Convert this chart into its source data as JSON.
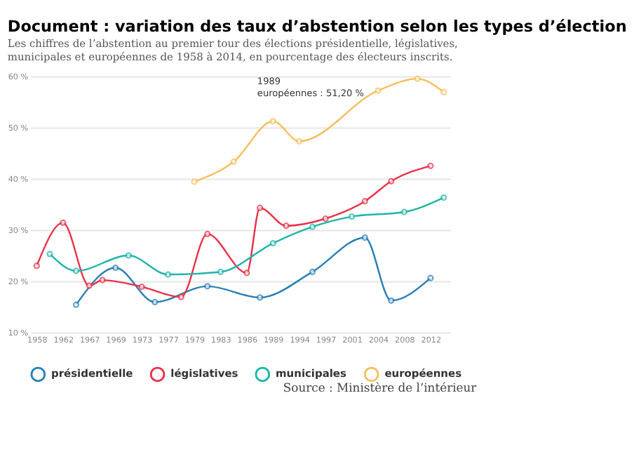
{
  "chart_data": {
    "type": "line",
    "title": "Document : variation des taux d’abstention selon les types d’élection",
    "subtitle": [
      "Les chiffres de l’abstention au premier tour des élections présidentielle, législatives,",
      "municipales et européennes de 1958 à 2014, en pourcentage des électeurs inscrits."
    ],
    "categories": [
      "1958",
      null,
      "1962",
      null,
      "1967",
      null,
      "1969",
      null,
      "1973",
      null,
      "1977",
      null,
      "1979",
      null,
      "1983",
      null,
      "1986",
      null,
      "1989",
      null,
      "1994",
      null,
      "1997",
      null,
      "2001",
      null,
      "2004",
      null,
      "2008",
      null,
      "2012",
      null
    ],
    "series": [
      {
        "name": "présidentielle",
        "color": "#2a7fb5",
        "values": [
          null,
          null,
          null,
          15.4,
          null,
          null,
          22.6,
          null,
          null,
          15.9,
          null,
          null,
          null,
          19.0,
          null,
          null,
          null,
          16.8,
          null,
          null,
          null,
          21.8,
          null,
          null,
          null,
          28.5,
          null,
          16.2,
          null,
          null,
          20.6,
          null
        ]
      },
      {
        "name": "législatives",
        "color": "#e8334a",
        "values": [
          23.0,
          null,
          31.4,
          null,
          19.1,
          20.2,
          null,
          null,
          18.9,
          null,
          null,
          16.9,
          null,
          29.2,
          null,
          null,
          21.6,
          34.3,
          null,
          30.8,
          null,
          null,
          32.2,
          null,
          null,
          35.6,
          null,
          39.5,
          null,
          null,
          42.5,
          null
        ]
      },
      {
        "name": "municipales",
        "color": "#1fb5a8",
        "values": [
          null,
          25.3,
          null,
          22.0,
          null,
          null,
          null,
          25.0,
          null,
          null,
          21.3,
          null,
          null,
          null,
          21.8,
          null,
          null,
          null,
          27.4,
          null,
          null,
          30.6,
          null,
          null,
          32.6,
          null,
          null,
          null,
          33.5,
          null,
          null,
          36.3
        ]
      },
      {
        "name": "européennes",
        "color": "#f5c060",
        "values": [
          null,
          null,
          null,
          null,
          null,
          null,
          null,
          null,
          null,
          null,
          null,
          null,
          39.4,
          null,
          null,
          43.3,
          null,
          null,
          51.2,
          null,
          47.3,
          null,
          null,
          null,
          null,
          null,
          57.2,
          null,
          null,
          59.5,
          null,
          56.9
        ]
      }
    ],
    "ylim": [
      10,
      60
    ],
    "yticks": [
      {
        "value": 10,
        "label": "10 %"
      },
      {
        "value": 20,
        "label": "20 %"
      },
      {
        "value": 30,
        "label": "30 %"
      },
      {
        "value": 40,
        "label": "40 %"
      },
      {
        "value": 50,
        "label": "50 %"
      },
      {
        "value": 60,
        "label": "60 %"
      }
    ],
    "grid": "y",
    "legend": "bottom",
    "marker": "circle",
    "line_style": "solid",
    "annotations": [
      {
        "text": "1989\neuropéennes : 51,20 %",
        "x": "1989",
        "y": 51.2
      },
      "Source : Ministère de l’intérieur"
    ]
  }
}
